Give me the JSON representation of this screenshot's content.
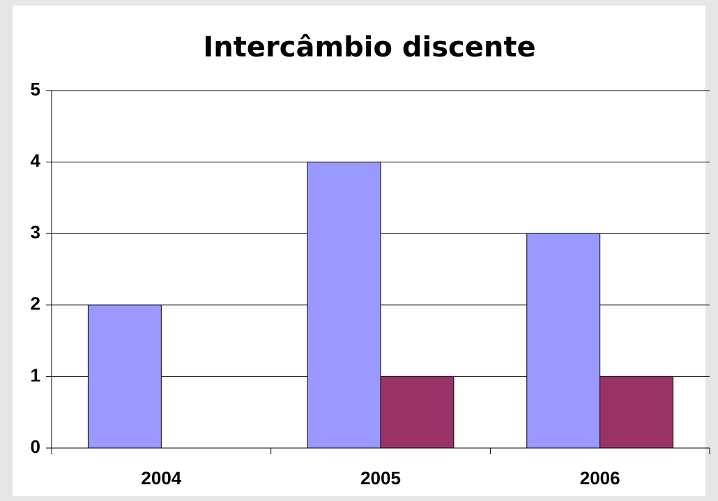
{
  "chart_data": {
    "type": "bar",
    "title": "Intercâmbio discente",
    "categories": [
      "2004",
      "2005",
      "2006"
    ],
    "series": [
      {
        "color": "#9999ff",
        "values": [
          2,
          4,
          3
        ]
      },
      {
        "color": "#993366",
        "values": [
          0,
          1,
          1
        ]
      }
    ],
    "ylim": [
      0,
      5
    ],
    "yticks": [
      0,
      1,
      2,
      3,
      4,
      5
    ],
    "grid": true
  }
}
